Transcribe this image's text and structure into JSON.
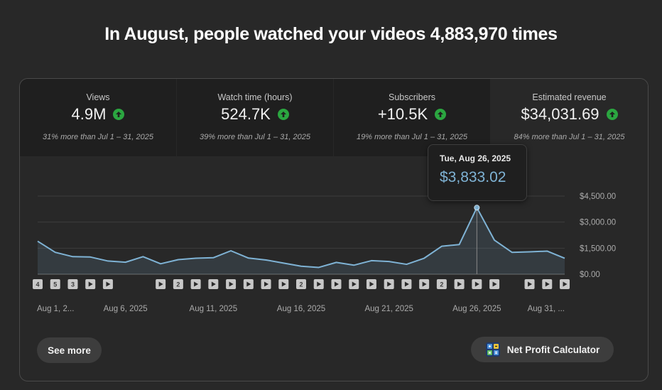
{
  "headline": "In August, people watched your videos 4,883,970 times",
  "metrics": [
    {
      "label": "Views",
      "value": "4.9M",
      "compare": "31% more than Jul 1 – 31, 2025",
      "trend": "up"
    },
    {
      "label": "Watch time (hours)",
      "value": "524.7K",
      "compare": "39% more than Jul 1 – 31, 2025",
      "trend": "up"
    },
    {
      "label": "Subscribers",
      "value": "+10.5K",
      "compare": "19% more than Jul 1 – 31, 2025",
      "trend": "up"
    },
    {
      "label": "Estimated revenue",
      "value": "$34,031.69",
      "compare": "84% more than Jul 1 – 31, 2025",
      "trend": "up"
    }
  ],
  "tooltip": {
    "date": "Tue, Aug 26, 2025",
    "value": "$3,833.02"
  },
  "buttons": {
    "see_more": "See more",
    "net_profit": "Net Profit Calculator"
  },
  "icons": {
    "trend_up": "arrow-up-circle-icon",
    "video": "play-icon",
    "calculator": "calculator-icon"
  },
  "colors": {
    "line": "#7fb3d5",
    "trend_up": "#2ba640",
    "background": "#282828"
  },
  "chart_data": {
    "type": "area",
    "title": "Estimated revenue",
    "x": [
      "Aug 1",
      "Aug 2",
      "Aug 3",
      "Aug 4",
      "Aug 5",
      "Aug 6",
      "Aug 7",
      "Aug 8",
      "Aug 9",
      "Aug 10",
      "Aug 11",
      "Aug 12",
      "Aug 13",
      "Aug 14",
      "Aug 15",
      "Aug 16",
      "Aug 17",
      "Aug 18",
      "Aug 19",
      "Aug 20",
      "Aug 21",
      "Aug 22",
      "Aug 23",
      "Aug 24",
      "Aug 25",
      "Aug 26",
      "Aug 27",
      "Aug 28",
      "Aug 29",
      "Aug 30",
      "Aug 31"
    ],
    "series": [
      {
        "name": "Estimated revenue",
        "values": [
          1900,
          1260,
          1010,
          990,
          760,
          690,
          1010,
          600,
          840,
          920,
          950,
          1350,
          930,
          820,
          640,
          460,
          390,
          680,
          520,
          780,
          730,
          570,
          920,
          1610,
          1710,
          3833,
          1960,
          1260,
          1290,
          1330,
          920
        ]
      }
    ],
    "x_tick_labels": [
      "Aug 1, 2...",
      "Aug 6, 2025",
      "Aug 11, 2025",
      "Aug 16, 2025",
      "Aug 21, 2025",
      "Aug 26, 2025",
      "Aug 31, ..."
    ],
    "x_tick_days": [
      1,
      6,
      11,
      16,
      21,
      26,
      31
    ],
    "y_tick_labels": [
      "$0.00",
      "$1,500.00",
      "$3,000.00",
      "$4,500.00"
    ],
    "y_tick_values": [
      0,
      1500,
      3000,
      4500
    ],
    "ylim": [
      0,
      4500
    ],
    "highlight_day": 26,
    "video_markers": [
      {
        "day": 1,
        "label": "4"
      },
      {
        "day": 2,
        "label": "5"
      },
      {
        "day": 3,
        "label": "3"
      },
      {
        "day": 4,
        "label": "▶"
      },
      {
        "day": 5,
        "label": "▶"
      },
      {
        "day": 8,
        "label": "▶"
      },
      {
        "day": 9,
        "label": "2"
      },
      {
        "day": 10,
        "label": "▶"
      },
      {
        "day": 11,
        "label": "▶"
      },
      {
        "day": 12,
        "label": "▶"
      },
      {
        "day": 13,
        "label": "▶"
      },
      {
        "day": 14,
        "label": "▶"
      },
      {
        "day": 15,
        "label": "▶"
      },
      {
        "day": 16,
        "label": "2"
      },
      {
        "day": 17,
        "label": "▶"
      },
      {
        "day": 18,
        "label": "▶"
      },
      {
        "day": 19,
        "label": "▶"
      },
      {
        "day": 20,
        "label": "▶"
      },
      {
        "day": 21,
        "label": "▶"
      },
      {
        "day": 22,
        "label": "▶"
      },
      {
        "day": 23,
        "label": "▶"
      },
      {
        "day": 24,
        "label": "2"
      },
      {
        "day": 25,
        "label": "▶"
      },
      {
        "day": 26,
        "label": "▶"
      },
      {
        "day": 27,
        "label": "▶"
      },
      {
        "day": 29,
        "label": "▶"
      },
      {
        "day": 30,
        "label": "▶"
      },
      {
        "day": 31,
        "label": "▶"
      }
    ]
  }
}
